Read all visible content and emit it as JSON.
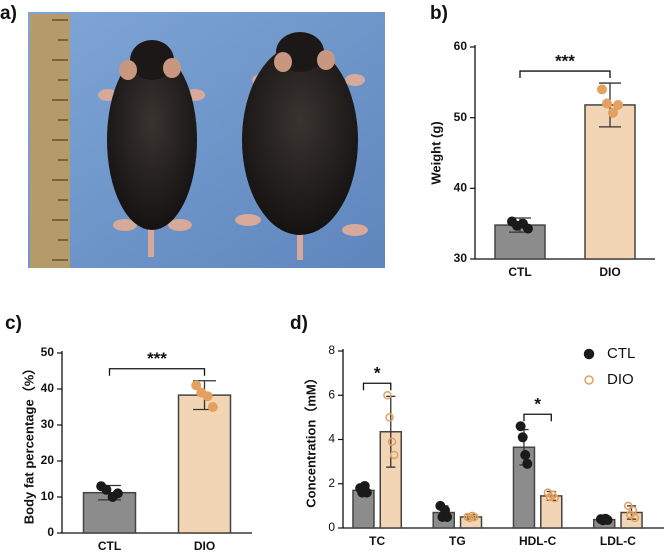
{
  "photo": {
    "panel_label": "a)"
  },
  "chart_data": [
    {
      "type": "bar",
      "panel_label": "b)",
      "ylabel": "Weight (g)",
      "categories": [
        "CTL",
        "DIO"
      ],
      "values": [
        34.8,
        51.8
      ],
      "errors": [
        1.0,
        3.1
      ],
      "points": [
        [
          35.3,
          34.7,
          35.0,
          34.3
        ],
        [
          54.0,
          52.0,
          50.7,
          51.8
        ]
      ],
      "colors": [
        "#8c8c8c",
        "#f2d5b4"
      ],
      "point_colors": [
        "#1a1a1a",
        "#e3a05e"
      ],
      "ylim": [
        30,
        60
      ],
      "yticks": [
        30,
        40,
        50,
        60
      ],
      "annotations": [
        {
          "text": "***",
          "categories": [
            "CTL",
            "DIO"
          ]
        }
      ]
    },
    {
      "type": "bar",
      "panel_label": "c)",
      "ylabel": "Body fat percentage（%）",
      "categories": [
        "CTL",
        "DIO"
      ],
      "values": [
        11.2,
        38.3
      ],
      "errors": [
        2.0,
        4.0
      ],
      "points": [
        [
          13,
          12,
          10,
          11
        ],
        [
          41,
          39,
          38,
          35
        ]
      ],
      "colors": [
        "#8c8c8c",
        "#f2d5b4"
      ],
      "point_colors": [
        "#1a1a1a",
        "#e3a05e"
      ],
      "ylim": [
        0,
        50
      ],
      "yticks": [
        0,
        10,
        20,
        30,
        40,
        50
      ],
      "annotations": [
        {
          "text": "***",
          "categories": [
            "CTL",
            "DIO"
          ]
        }
      ]
    },
    {
      "type": "grouped_bar",
      "panel_label": "d)",
      "ylabel": "Concentration（mM）",
      "categories": [
        "TC",
        "TG",
        "HDL-C",
        "LDL-C"
      ],
      "series": [
        {
          "name": "CTL",
          "color": "#8c8c8c",
          "point_color": "#1a1a1a",
          "marker": "filled",
          "values": [
            1.7,
            0.7,
            3.65,
            0.38
          ],
          "errors": [
            0.2,
            0.3,
            0.8,
            0.05
          ],
          "points": [
            [
              1.8,
              1.6,
              1.9,
              1.6
            ],
            [
              1.0,
              0.5,
              0.8,
              0.5
            ],
            [
              4.6,
              4.1,
              3.3,
              2.9
            ],
            [
              0.4,
              0.35,
              0.42,
              0.36
            ]
          ]
        },
        {
          "name": "DIO",
          "color": "#f2d5b4",
          "point_color": "#e3a05e",
          "marker": "open",
          "values": [
            4.35,
            0.5,
            1.45,
            0.7
          ],
          "errors": [
            1.6,
            0.1,
            0.2,
            0.3
          ],
          "points": [
            [
              6.0,
              5.0,
              3.9,
              3.3
            ],
            [
              0.5,
              0.45,
              0.55,
              0.5
            ],
            [
              1.6,
              1.4,
              1.5,
              1.35
            ],
            [
              1.0,
              0.6,
              0.8,
              0.45
            ]
          ]
        }
      ],
      "ylim": [
        0,
        8
      ],
      "yticks": [
        0,
        2,
        4,
        6,
        8
      ],
      "legend": "upper right",
      "annotations": [
        {
          "text": "*",
          "category": "TC"
        },
        {
          "text": "*",
          "category": "HDL-C"
        }
      ]
    }
  ]
}
